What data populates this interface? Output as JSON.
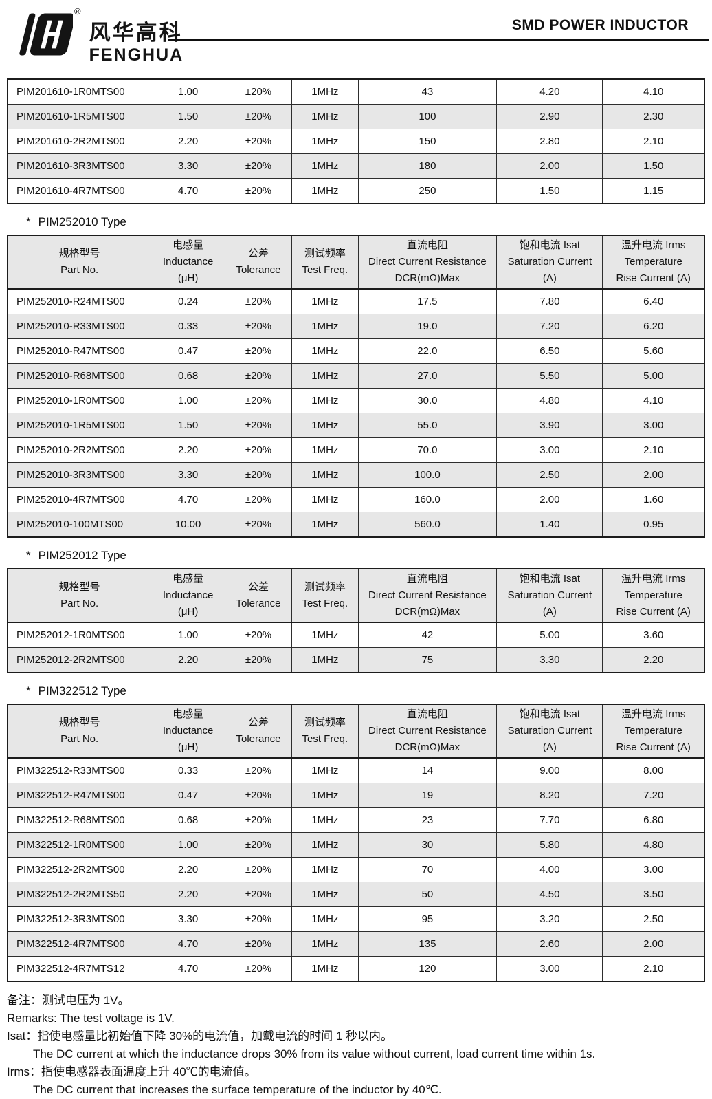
{
  "header": {
    "brand_cn": "风华高科",
    "brand_en": "FENGHUA",
    "title": "SMD POWER INDUCTOR",
    "registered_mark": "®"
  },
  "colors": {
    "row_alt": "#e7e7e7",
    "header_bg": "#e7e7e7",
    "border": "#2e2e2e",
    "border_strong": "#1c1c1c",
    "logo_black": "#141414"
  },
  "column_headers": [
    {
      "cn": "规格型号",
      "en": "Part No.",
      "unit": ""
    },
    {
      "cn": "电感量",
      "en": "Inductance",
      "unit": "(μH)"
    },
    {
      "cn": "公差",
      "en": "Tolerance",
      "unit": ""
    },
    {
      "cn": "测试频率",
      "en": "Test Freq.",
      "unit": ""
    },
    {
      "cn": "直流电阻",
      "en": "Direct Current Resistance",
      "unit": "DCR(mΩ)Max"
    },
    {
      "cn": "饱和电流 Isat",
      "en": "Saturation Current",
      "unit": "(A)"
    },
    {
      "cn": "温升电流 Irms",
      "en": "Temperature",
      "unit": "Rise Current (A)"
    }
  ],
  "sections": [
    {
      "bullet": null,
      "title": null,
      "has_header": false,
      "rows": [
        [
          "PIM201610-1R0MTS00",
          "1.00",
          "±20%",
          "1MHz",
          "43",
          "4.20",
          "4.10"
        ],
        [
          "PIM201610-1R5MTS00",
          "1.50",
          "±20%",
          "1MHz",
          "100",
          "2.90",
          "2.30"
        ],
        [
          "PIM201610-2R2MTS00",
          "2.20",
          "±20%",
          "1MHz",
          "150",
          "2.80",
          "2.10"
        ],
        [
          "PIM201610-3R3MTS00",
          "3.30",
          "±20%",
          "1MHz",
          "180",
          "2.00",
          "1.50"
        ],
        [
          "PIM201610-4R7MTS00",
          "4.70",
          "±20%",
          "1MHz",
          "250",
          "1.50",
          "1.15"
        ]
      ]
    },
    {
      "bullet": "*",
      "title": "PIM252010 Type",
      "has_header": true,
      "rows": [
        [
          "PIM252010-R24MTS00",
          "0.24",
          "±20%",
          "1MHz",
          "17.5",
          "7.80",
          "6.40"
        ],
        [
          "PIM252010-R33MTS00",
          "0.33",
          "±20%",
          "1MHz",
          "19.0",
          "7.20",
          "6.20"
        ],
        [
          "PIM252010-R47MTS00",
          "0.47",
          "±20%",
          "1MHz",
          "22.0",
          "6.50",
          "5.60"
        ],
        [
          "PIM252010-R68MTS00",
          "0.68",
          "±20%",
          "1MHz",
          "27.0",
          "5.50",
          "5.00"
        ],
        [
          "PIM252010-1R0MTS00",
          "1.00",
          "±20%",
          "1MHz",
          "30.0",
          "4.80",
          "4.10"
        ],
        [
          "PIM252010-1R5MTS00",
          "1.50",
          "±20%",
          "1MHz",
          "55.0",
          "3.90",
          "3.00"
        ],
        [
          "PIM252010-2R2MTS00",
          "2.20",
          "±20%",
          "1MHz",
          "70.0",
          "3.00",
          "2.10"
        ],
        [
          "PIM252010-3R3MTS00",
          "3.30",
          "±20%",
          "1MHz",
          "100.0",
          "2.50",
          "2.00"
        ],
        [
          "PIM252010-4R7MTS00",
          "4.70",
          "±20%",
          "1MHz",
          "160.0",
          "2.00",
          "1.60"
        ],
        [
          "PIM252010-100MTS00",
          "10.00",
          "±20%",
          "1MHz",
          "560.0",
          "1.40",
          "0.95"
        ]
      ]
    },
    {
      "bullet": "*",
      "title": "PIM252012 Type",
      "has_header": true,
      "rows": [
        [
          "PIM252012-1R0MTS00",
          "1.00",
          "±20%",
          "1MHz",
          "42",
          "5.00",
          "3.60"
        ],
        [
          "PIM252012-2R2MTS00",
          "2.20",
          "±20%",
          "1MHz",
          "75",
          "3.30",
          "2.20"
        ]
      ]
    },
    {
      "bullet": "*",
      "title": "PIM322512 Type",
      "has_header": true,
      "rows": [
        [
          "PIM322512-R33MTS00",
          "0.33",
          "±20%",
          "1MHz",
          "14",
          "9.00",
          "8.00"
        ],
        [
          "PIM322512-R47MTS00",
          "0.47",
          "±20%",
          "1MHz",
          "19",
          "8.20",
          "7.20"
        ],
        [
          "PIM322512-R68MTS00",
          "0.68",
          "±20%",
          "1MHz",
          "23",
          "7.70",
          "6.80"
        ],
        [
          "PIM322512-1R0MTS00",
          "1.00",
          "±20%",
          "1MHz",
          "30",
          "5.80",
          "4.80"
        ],
        [
          "PIM322512-2R2MTS00",
          "2.20",
          "±20%",
          "1MHz",
          "70",
          "4.00",
          "3.00"
        ],
        [
          "PIM322512-2R2MTS50",
          "2.20",
          "±20%",
          "1MHz",
          "50",
          "4.50",
          "3.50"
        ],
        [
          "PIM322512-3R3MTS00",
          "3.30",
          "±20%",
          "1MHz",
          "95",
          "3.20",
          "2.50"
        ],
        [
          "PIM322512-4R7MTS00",
          "4.70",
          "±20%",
          "1MHz",
          "135",
          "2.60",
          "2.00"
        ],
        [
          "PIM322512-4R7MTS12",
          "4.70",
          "±20%",
          "1MHz",
          "120",
          "3.00",
          "2.10"
        ]
      ]
    }
  ],
  "remarks": [
    {
      "text": "备注：测试电压为 1V。",
      "indent": 0
    },
    {
      "text": "Remarks: The test voltage is 1V.",
      "indent": 0
    },
    {
      "text": "Isat：指使电感量比初始值下降 30%的电流值，加载电流的时间 1 秒以内。",
      "indent": 0
    },
    {
      "text": "The DC current at which the inductance drops 30% from its value without current, load current time within 1s.",
      "indent": 1
    },
    {
      "text": "Irms：指使电感器表面温度上升 40℃的电流值。",
      "indent": 0
    },
    {
      "text": "The DC current that increases the surface temperature of the inductor by 40℃.",
      "indent": 1
    }
  ]
}
